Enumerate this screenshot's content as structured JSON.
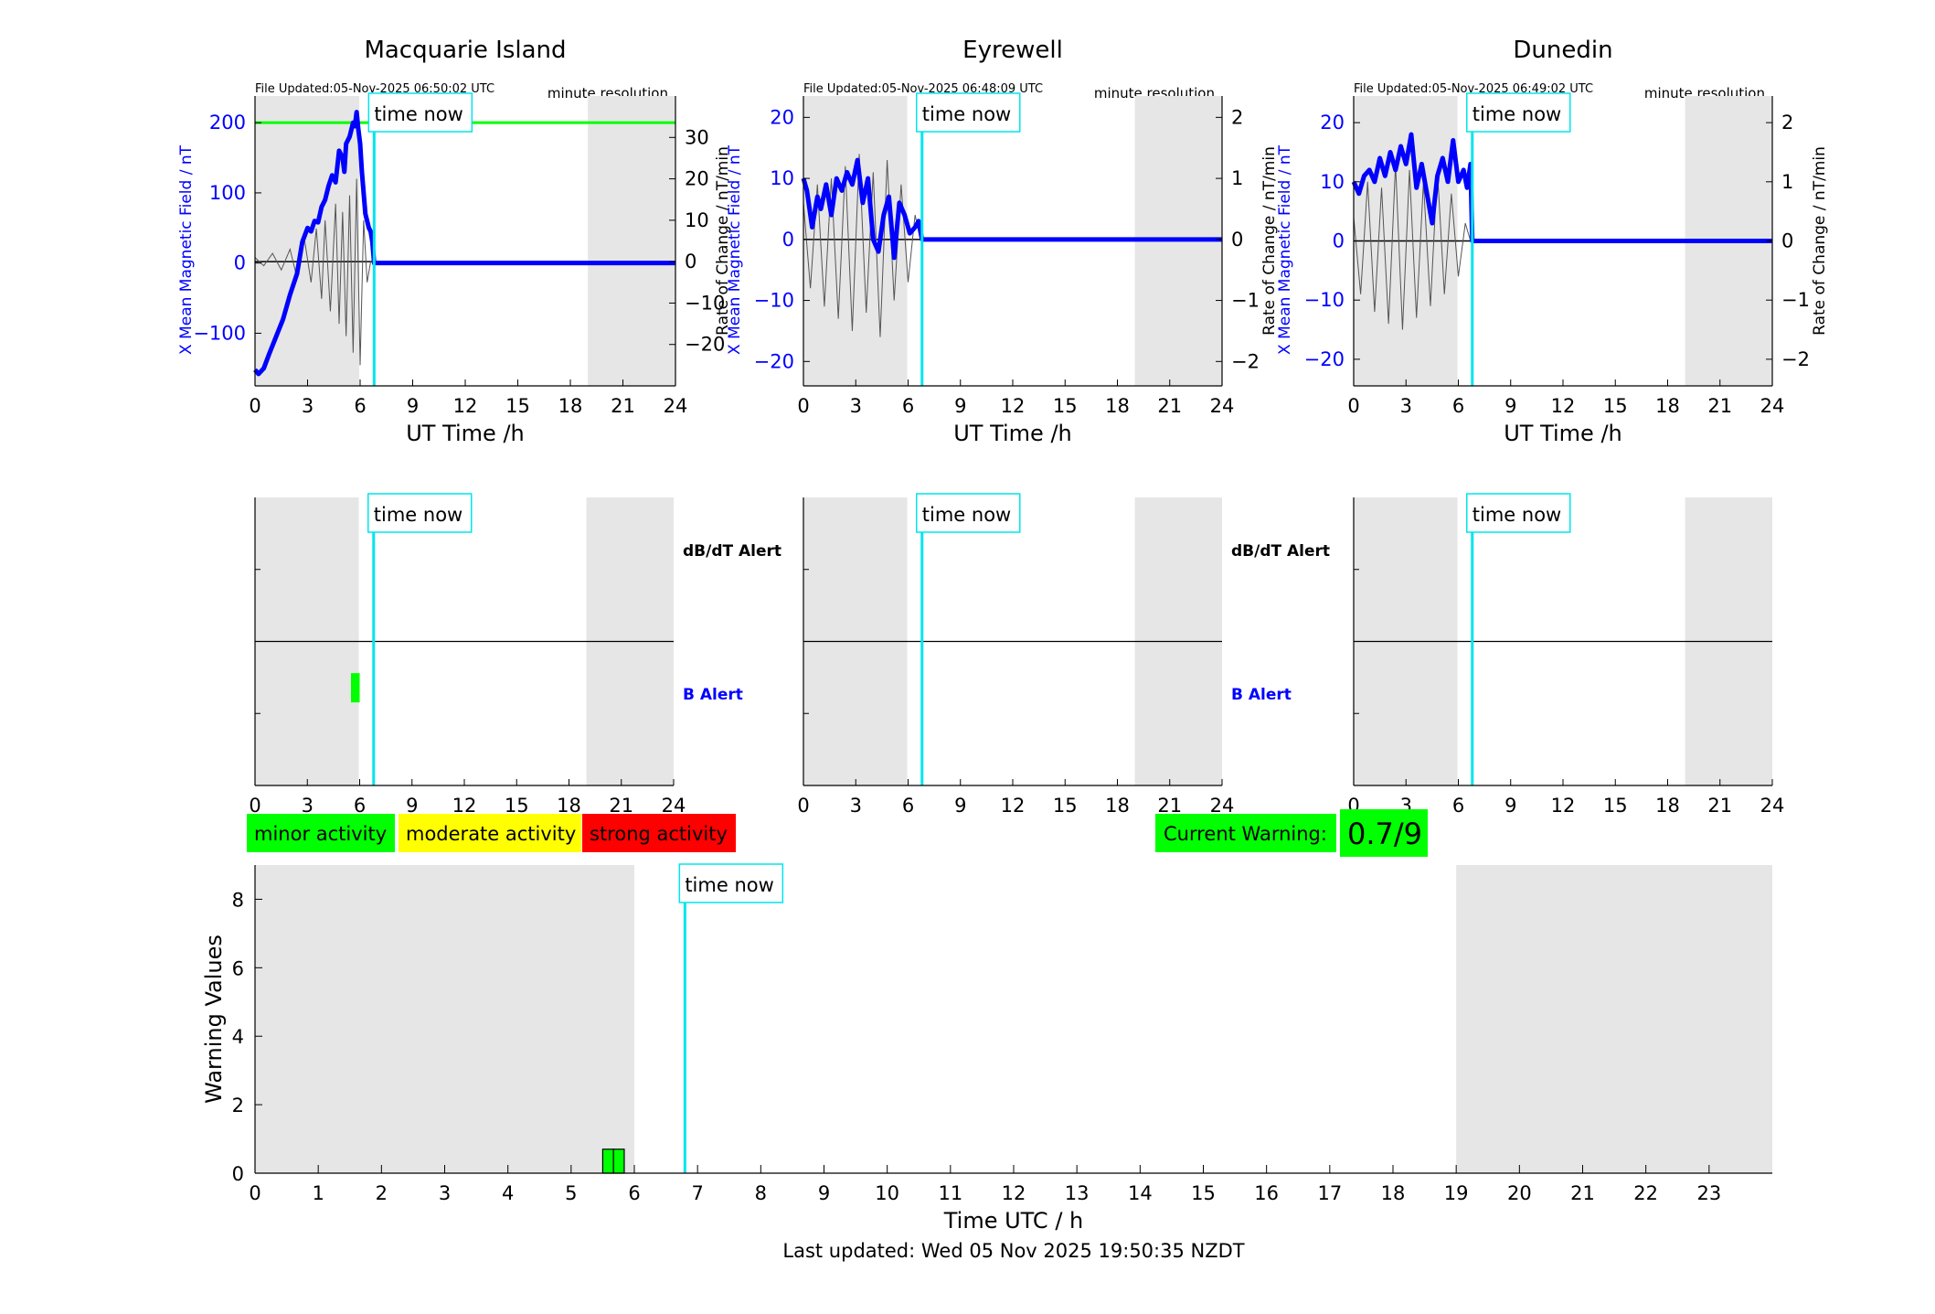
{
  "chart_data": [
    {
      "type": "line",
      "title": "Macquarie Island",
      "file_updated": "File Updated:05-Nov-2025 06:50:02 UTC",
      "resolution": "minute resolution",
      "xlabel": "UT Time /h",
      "ylabel_left": "X Mean Magnetic Field / nT",
      "ylabel_right": "Rate of Change / nT/min",
      "xlim": [
        0,
        24
      ],
      "ylim_left": [
        -175,
        238
      ],
      "ylim_right": [
        -30,
        40
      ],
      "xticks": [
        0,
        3,
        6,
        9,
        12,
        15,
        18,
        21,
        24
      ],
      "yticks_left": [
        -100,
        0,
        100,
        200
      ],
      "yticks_right": [
        -20,
        -10,
        0,
        10,
        20,
        30
      ],
      "threshold_left": 200,
      "time_now": 6.8,
      "time_now_label": "time now",
      "shaded_ranges": [
        [
          0,
          5.95
        ],
        [
          19,
          24
        ]
      ],
      "series": [
        {
          "axis": "left",
          "color": "#0000ff",
          "x": [
            0,
            0.2,
            0.5,
            0.8,
            1.2,
            1.6,
            2.0,
            2.4,
            2.7,
            3.0,
            3.2,
            3.4,
            3.6,
            3.8,
            4.0,
            4.2,
            4.4,
            4.6,
            4.8,
            5.0,
            5.1,
            5.2,
            5.4,
            5.5,
            5.6,
            5.7,
            5.8,
            5.9,
            6.0,
            6.1,
            6.2,
            6.3,
            6.4,
            6.5,
            6.6,
            6.7,
            6.8,
            7,
            9,
            12,
            15,
            18,
            21,
            24
          ],
          "y": [
            -152,
            -158,
            -150,
            -130,
            -105,
            -80,
            -45,
            -15,
            30,
            50,
            45,
            60,
            58,
            80,
            90,
            110,
            125,
            115,
            160,
            150,
            130,
            170,
            180,
            190,
            200,
            195,
            215,
            190,
            170,
            130,
            100,
            70,
            60,
            50,
            45,
            30,
            0,
            0,
            0,
            0,
            0,
            0,
            0,
            0
          ]
        },
        {
          "axis": "right",
          "color": "#555555",
          "x": [
            0,
            0.5,
            1.0,
            1.5,
            2.0,
            2.4,
            2.8,
            3.2,
            3.5,
            3.8,
            4.0,
            4.3,
            4.6,
            4.8,
            5.0,
            5.2,
            5.4,
            5.6,
            5.8,
            6.0,
            6.2,
            6.4,
            6.6
          ],
          "y": [
            1,
            -1,
            2,
            -2,
            3,
            -4,
            6,
            -5,
            8,
            -9,
            10,
            -12,
            14,
            -15,
            12,
            -18,
            16,
            -22,
            20,
            -25,
            10,
            -5,
            0
          ]
        }
      ]
    },
    {
      "type": "line",
      "title": "Eyrewell",
      "file_updated": "File Updated:05-Nov-2025 06:48:09 UTC",
      "resolution": "minute resolution",
      "xlabel": "UT Time /h",
      "ylabel_left": "X Mean Magnetic Field / nT",
      "ylabel_right": "Rate of Change / nT/min",
      "xlim": [
        0,
        24
      ],
      "ylim_left": [
        -24,
        23.5
      ],
      "ylim_right": [
        -2.4,
        2.35
      ],
      "xticks": [
        0,
        3,
        6,
        9,
        12,
        15,
        18,
        21,
        24
      ],
      "yticks_left": [
        -20,
        -10,
        0,
        10,
        20
      ],
      "yticks_right": [
        -2,
        -1,
        0,
        1,
        2
      ],
      "time_now": 6.8,
      "time_now_label": "time now",
      "shaded_ranges": [
        [
          0,
          5.95
        ],
        [
          19,
          24
        ]
      ],
      "series": [
        {
          "axis": "left",
          "color": "#0000ff",
          "x": [
            0,
            0.2,
            0.5,
            0.8,
            1.0,
            1.3,
            1.6,
            1.9,
            2.2,
            2.5,
            2.8,
            3.1,
            3.4,
            3.7,
            4.0,
            4.3,
            4.6,
            4.9,
            5.2,
            5.5,
            5.8,
            6.1,
            6.4,
            6.6,
            6.8,
            7,
            12,
            18,
            24
          ],
          "y": [
            10,
            8,
            2,
            7,
            5,
            9,
            4,
            10,
            8,
            11,
            9,
            13,
            6,
            10,
            0,
            -2,
            4,
            7,
            -3,
            6,
            4,
            1,
            2,
            3,
            0,
            0,
            0,
            0,
            0
          ]
        },
        {
          "axis": "right",
          "color": "#555555",
          "x": [
            0,
            0.4,
            0.8,
            1.2,
            1.6,
            2.0,
            2.4,
            2.8,
            3.2,
            3.6,
            4.0,
            4.4,
            4.8,
            5.2,
            5.6,
            6.0,
            6.4,
            6.7
          ],
          "y": [
            0.6,
            -0.8,
            0.9,
            -1.1,
            1.0,
            -1.3,
            1.2,
            -1.5,
            1.4,
            -1.2,
            1.1,
            -1.6,
            1.3,
            -1.0,
            0.9,
            -0.7,
            0.4,
            0
          ]
        }
      ]
    },
    {
      "type": "line",
      "title": "Dunedin",
      "file_updated": "File Updated:05-Nov-2025 06:49:02 UTC",
      "resolution": "minute resolution",
      "xlabel": "UT Time /h",
      "ylabel_left": "X Mean Magnetic Field / nT",
      "ylabel_right": "Rate of Change / nT/min",
      "xlim": [
        0,
        24
      ],
      "ylim_left": [
        -24.5,
        24.5
      ],
      "ylim_right": [
        -2.45,
        2.45
      ],
      "xticks": [
        0,
        3,
        6,
        9,
        12,
        15,
        18,
        21,
        24
      ],
      "yticks_left": [
        -20,
        -10,
        0,
        10,
        20
      ],
      "yticks_right": [
        -2,
        -1,
        0,
        1,
        2
      ],
      "time_now": 6.8,
      "time_now_label": "time now",
      "shaded_ranges": [
        [
          0,
          5.95
        ],
        [
          19,
          24
        ]
      ],
      "series": [
        {
          "axis": "left",
          "color": "#0000ff",
          "x": [
            0,
            0.3,
            0.6,
            0.9,
            1.2,
            1.5,
            1.8,
            2.1,
            2.4,
            2.7,
            3.0,
            3.3,
            3.6,
            3.9,
            4.2,
            4.5,
            4.8,
            5.1,
            5.4,
            5.7,
            6.0,
            6.3,
            6.5,
            6.7,
            6.8,
            7,
            12,
            18,
            24
          ],
          "y": [
            10,
            8,
            11,
            12,
            10,
            14,
            11,
            15,
            12,
            16,
            13,
            18,
            9,
            13,
            8,
            3,
            11,
            14,
            10,
            17,
            10,
            12,
            9,
            13,
            0,
            0,
            0,
            0,
            0
          ]
        },
        {
          "axis": "right",
          "color": "#555555",
          "x": [
            0,
            0.4,
            0.8,
            1.2,
            1.6,
            2.0,
            2.4,
            2.8,
            3.2,
            3.6,
            4.0,
            4.4,
            4.8,
            5.2,
            5.6,
            6.0,
            6.4,
            6.7
          ],
          "y": [
            0.4,
            -0.9,
            1.0,
            -1.2,
            0.9,
            -1.4,
            1.3,
            -1.5,
            1.2,
            -1.3,
            1.0,
            -1.1,
            1.2,
            -0.9,
            0.8,
            -0.6,
            0.3,
            0
          ]
        }
      ]
    },
    {
      "type": "bar",
      "title": "",
      "xlabel": "",
      "xlim": [
        0,
        24
      ],
      "xticks": [
        0,
        3,
        6,
        9,
        12,
        15,
        18,
        21,
        24
      ],
      "top_label": "dB/dT Alert",
      "bottom_label": "B Alert",
      "top_label_color": "#000000",
      "bottom_label_color": "#0000ff",
      "time_now": 6.8,
      "time_now_label": "time now",
      "shaded_ranges": [
        [
          0,
          5.95
        ],
        [
          19,
          24
        ]
      ],
      "b_alert_bars": [
        {
          "x0": 5.5,
          "x1": 6.0,
          "level": 0.5,
          "color": "#00ff00"
        }
      ]
    },
    {
      "type": "bar",
      "title": "",
      "xlabel": "",
      "xlim": [
        0,
        24
      ],
      "xticks": [
        0,
        3,
        6,
        9,
        12,
        15,
        18,
        21,
        24
      ],
      "top_label": "dB/dT Alert",
      "bottom_label": "B Alert",
      "top_label_color": "#000000",
      "bottom_label_color": "#0000ff",
      "time_now": 6.8,
      "time_now_label": "time now",
      "shaded_ranges": [
        [
          0,
          5.95
        ],
        [
          19,
          24
        ]
      ],
      "b_alert_bars": []
    },
    {
      "type": "bar",
      "title": "",
      "xlabel": "",
      "xlim": [
        0,
        24
      ],
      "xticks": [
        0,
        3,
        6,
        9,
        12,
        15,
        18,
        21,
        24
      ],
      "top_label": "",
      "bottom_label": "",
      "time_now": 6.8,
      "time_now_label": "time now",
      "shaded_ranges": [
        [
          0,
          5.95
        ],
        [
          19,
          24
        ]
      ],
      "b_alert_bars": []
    },
    {
      "type": "bar",
      "title": "",
      "xlabel": "Time UTC / h",
      "ylabel": "Warning Values",
      "xlim": [
        0,
        24
      ],
      "ylim": [
        0,
        9
      ],
      "xticks": [
        0,
        1,
        2,
        3,
        4,
        5,
        6,
        7,
        8,
        9,
        10,
        11,
        12,
        13,
        14,
        15,
        16,
        17,
        18,
        19,
        20,
        21,
        22,
        23
      ],
      "yticks": [
        0,
        2,
        4,
        6,
        8
      ],
      "time_now": 6.8,
      "time_now_label": "time now",
      "shaded_ranges": [
        [
          0,
          6
        ],
        [
          19,
          24
        ]
      ],
      "bars": [
        {
          "x0": 5.5,
          "x1": 5.67,
          "value": 0.7,
          "color": "#00ff00"
        },
        {
          "x0": 5.67,
          "x1": 5.84,
          "value": 0.7,
          "color": "#00ff00"
        }
      ]
    }
  ],
  "legend": {
    "minor": {
      "label": "minor activity",
      "color": "#00ff00"
    },
    "moderate": {
      "label": "moderate activity",
      "color": "#ffff00"
    },
    "strong": {
      "label": "strong activity",
      "color": "#ff0000"
    }
  },
  "current_warning": {
    "label": "Current Warning:",
    "value": "0.7/9",
    "color": "#00ff00"
  },
  "footer": {
    "last_updated": "Last updated: Wed 05 Nov 2025 19:50:35 NZDT"
  },
  "colors": {
    "shade": "#e6e6e6",
    "time_now_line": "#00e5ee",
    "threshold_line": "#00ff00",
    "field_line": "#0000ff",
    "rate_line": "#555555"
  }
}
